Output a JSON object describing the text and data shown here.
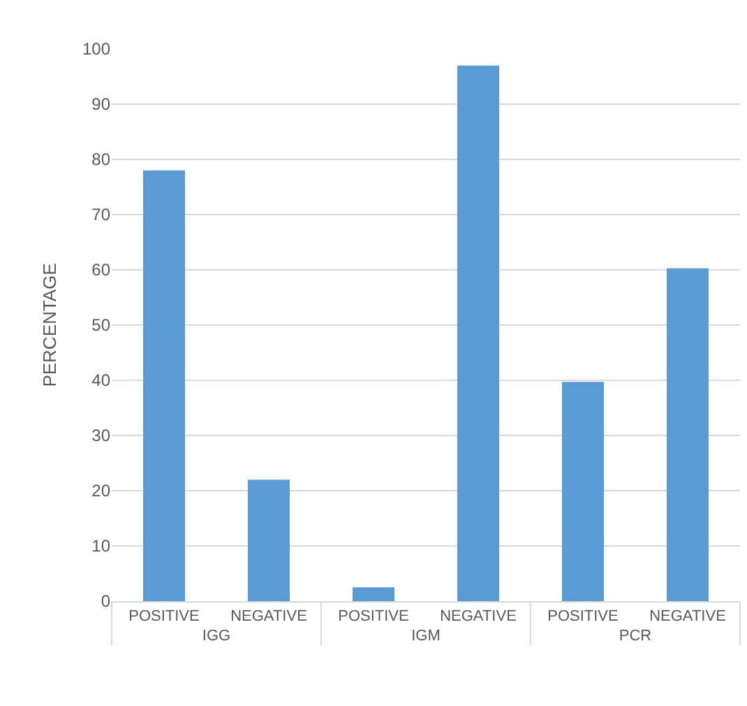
{
  "chart_data": {
    "type": "bar",
    "ylabel": "PERCENTAGE",
    "categories": [
      "POSITIVE",
      "NEGATIVE",
      "POSITIVE",
      "NEGATIVE",
      "POSITIVE",
      "NEGATIVE"
    ],
    "annotations": [
      "IGG",
      "IGM",
      "PCR"
    ],
    "values": [
      78,
      22,
      2.5,
      97,
      39.7,
      60.3
    ],
    "color": "#5b9bd5",
    "ylim": [
      0,
      100
    ],
    "yticks": [
      0,
      10,
      20,
      30,
      40,
      50,
      60,
      70,
      80,
      90,
      100
    ],
    "grid": "y",
    "legend": false
  }
}
